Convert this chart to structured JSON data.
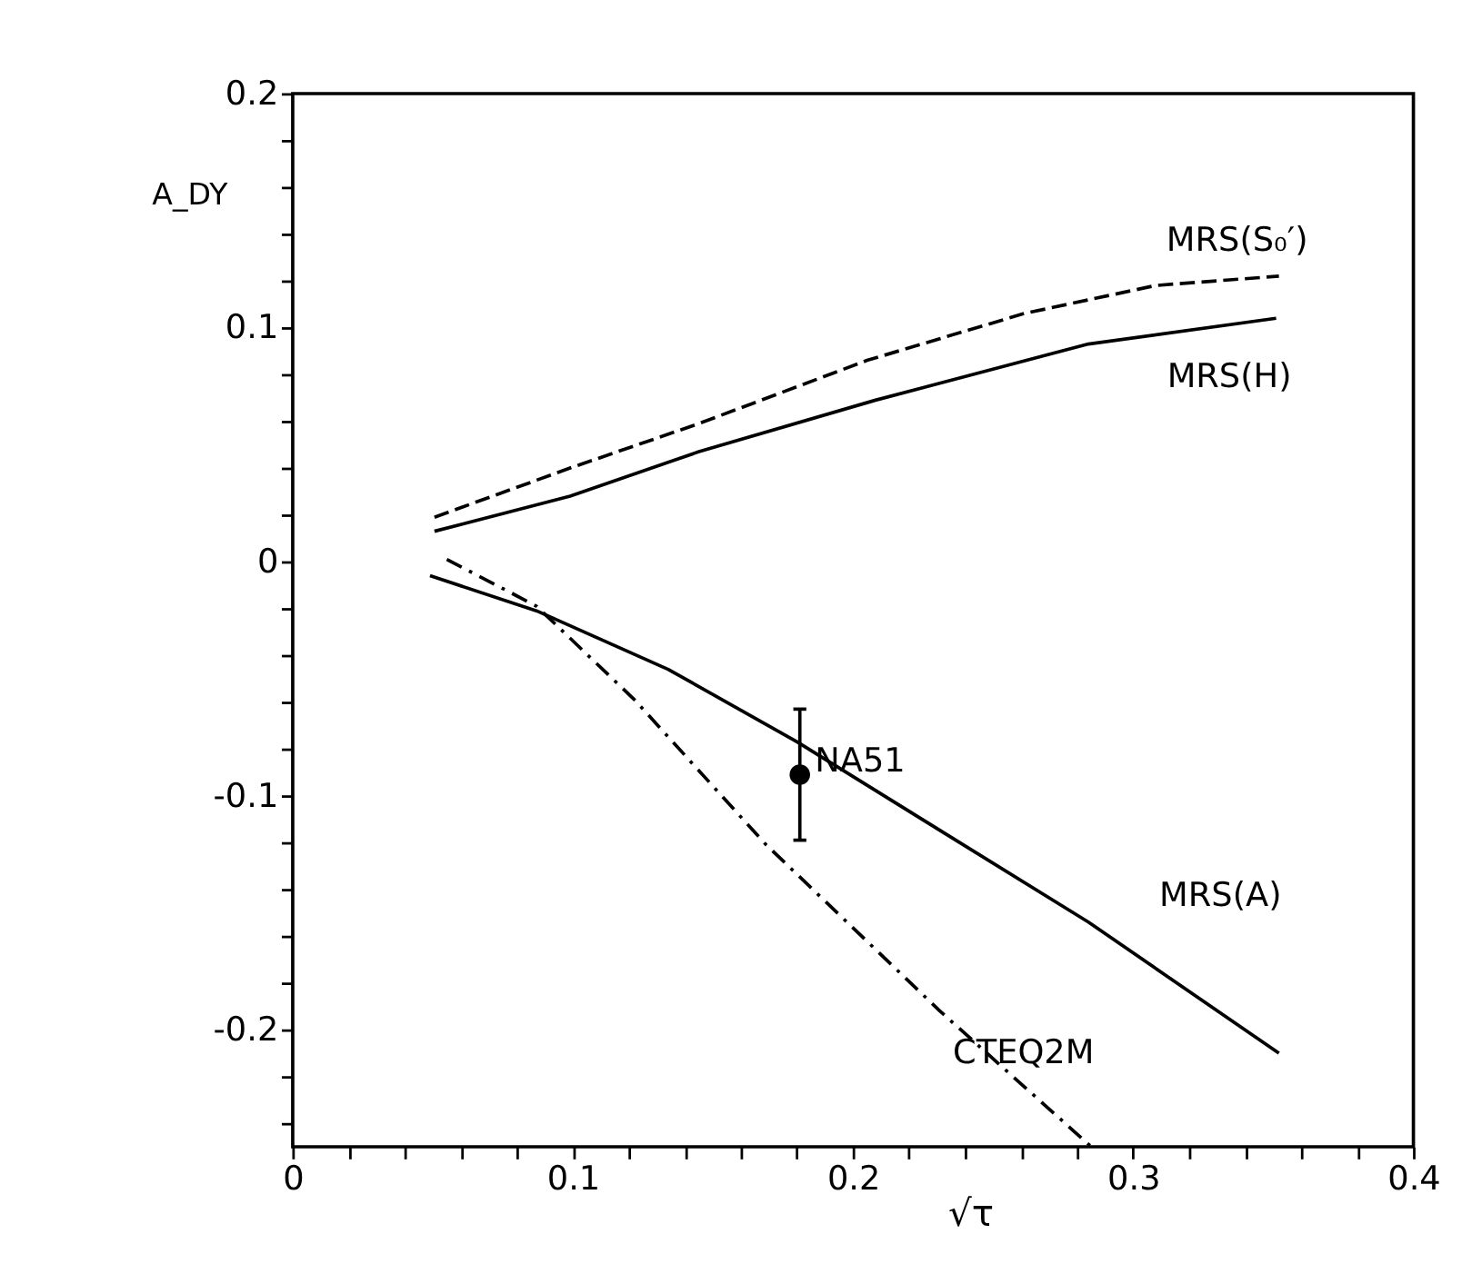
{
  "chart_data": {
    "type": "line",
    "xlabel": "√τ",
    "ylabel": "A_DY",
    "xlim": [
      0,
      0.4
    ],
    "ylim": [
      -0.25,
      0.2
    ],
    "xticks": [
      0,
      {
        "value": 0.02,
        "label": null
      },
      {
        "value": 0.04,
        "label": null
      },
      {
        "value": 0.06,
        "label": null
      },
      {
        "value": 0.08,
        "label": null
      },
      0.1,
      {
        "value": 0.12,
        "label": null
      },
      {
        "value": 0.14,
        "label": null
      },
      {
        "value": 0.16,
        "label": null
      },
      {
        "value": 0.18,
        "label": null
      },
      0.2,
      {
        "value": 0.22,
        "label": null
      },
      {
        "value": 0.24,
        "label": null
      },
      {
        "value": 0.26,
        "label": null
      },
      {
        "value": 0.28,
        "label": null
      },
      0.3,
      {
        "value": 0.32,
        "label": null
      },
      {
        "value": 0.34,
        "label": null
      },
      {
        "value": 0.36,
        "label": null
      },
      {
        "value": 0.38,
        "label": null
      },
      0.4
    ],
    "yticks": [
      {
        "value": -0.24,
        "label": null
      },
      {
        "value": -0.22,
        "label": null
      },
      -0.2,
      {
        "value": -0.18,
        "label": null
      },
      {
        "value": -0.16,
        "label": null
      },
      {
        "value": -0.14,
        "label": null
      },
      {
        "value": -0.12,
        "label": null
      },
      -0.1,
      {
        "value": -0.08,
        "label": null
      },
      {
        "value": -0.06,
        "label": null
      },
      {
        "value": -0.04,
        "label": null
      },
      {
        "value": -0.02,
        "label": null
      },
      0,
      {
        "value": 0.02,
        "label": null
      },
      {
        "value": 0.04,
        "label": null
      },
      {
        "value": 0.06,
        "label": null
      },
      {
        "value": 0.08,
        "label": null
      },
      0.1,
      {
        "value": 0.12,
        "label": null
      },
      {
        "value": 0.14,
        "label": null
      },
      {
        "value": 0.16,
        "label": null
      },
      {
        "value": 0.18,
        "label": null
      },
      0.2
    ],
    "grid": false,
    "series": [
      {
        "name": "MRS(S₀′)",
        "color": "#000000",
        "line_style": "dashed",
        "x": [
          0.0506,
          0.099,
          0.145,
          0.205,
          0.261,
          0.308,
          0.352
        ],
        "values": [
          0.019,
          0.04,
          0.059,
          0.086,
          0.106,
          0.118,
          0.122
        ]
      },
      {
        "name": "MRS(H)",
        "color": "#000000",
        "line_style": "solid",
        "x": [
          0.0506,
          0.099,
          0.145,
          0.208,
          0.284,
          0.351
        ],
        "values": [
          0.013,
          0.028,
          0.047,
          0.069,
          0.093,
          0.104
        ]
      },
      {
        "name": "MRS(A)",
        "color": "#000000",
        "line_style": "solid",
        "x": [
          0.049,
          0.087,
          0.134,
          0.18,
          0.238,
          0.284,
          0.352
        ],
        "values": [
          -0.006,
          -0.021,
          -0.046,
          -0.077,
          -0.12,
          -0.154,
          -0.21
        ]
      },
      {
        "name": "CTEQ2M",
        "color": "#000000",
        "line_style": "dashdot",
        "x": [
          0.055,
          0.087,
          0.122,
          0.169,
          0.231,
          0.285
        ],
        "values": [
          0.001,
          -0.019,
          -0.059,
          -0.121,
          -0.192,
          -0.25
        ]
      },
      {
        "name": "NA51",
        "type": "scatter",
        "color": "#000000",
        "marker": "circle",
        "x": [
          0.181
        ],
        "values": [
          -0.091
        ],
        "errors": [
          0.028
        ]
      }
    ]
  }
}
